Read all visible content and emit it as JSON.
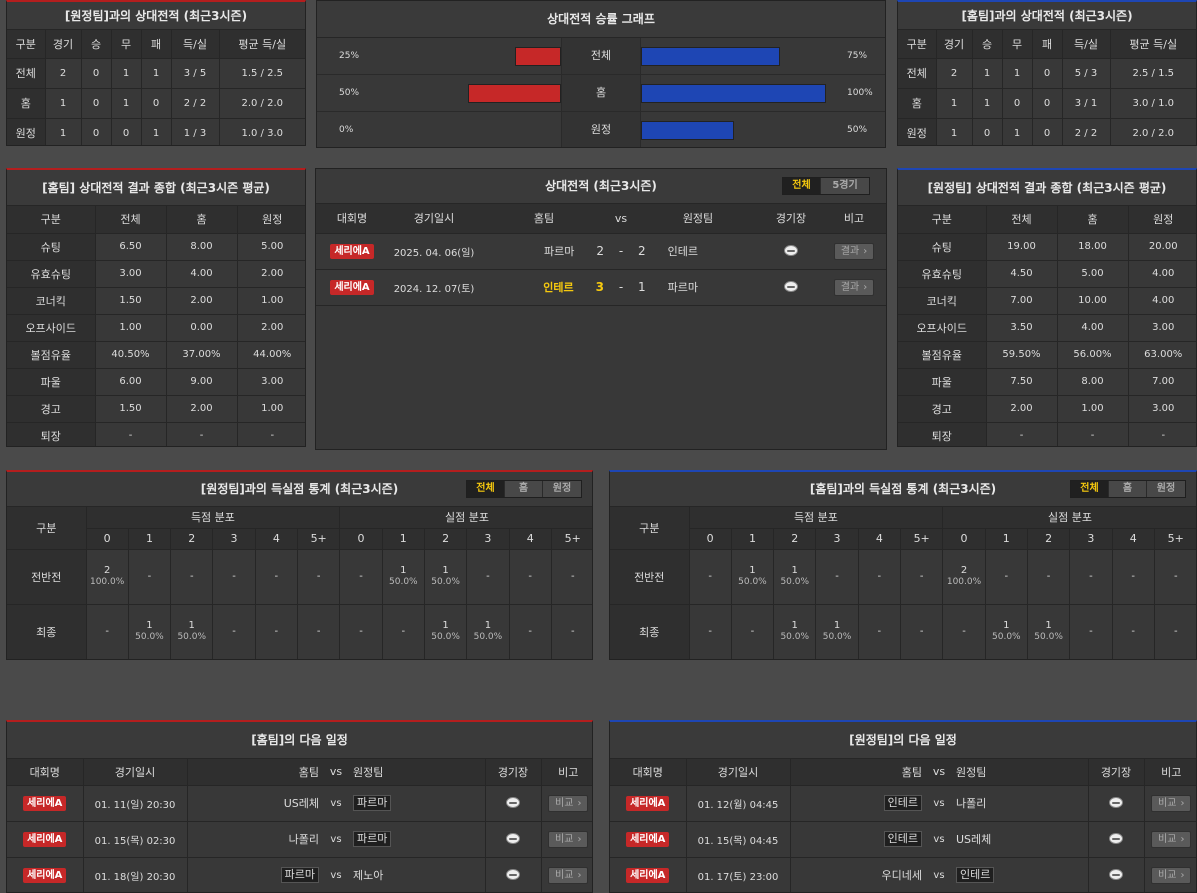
{
  "h2h_away": {
    "title": "[원정팀]과의 상대전적 (최근3시즌)",
    "headers": [
      "구분",
      "경기",
      "승",
      "무",
      "패",
      "득/실",
      "평균 득/실"
    ],
    "rows": [
      [
        "전체",
        "2",
        "0",
        "1",
        "1",
        "3 / 5",
        "1.5 / 2.5"
      ],
      [
        "홈",
        "1",
        "0",
        "1",
        "0",
        "2 / 2",
        "2.0 / 2.0"
      ],
      [
        "원정",
        "1",
        "0",
        "0",
        "1",
        "1 / 3",
        "1.0 / 3.0"
      ]
    ]
  },
  "graph": {
    "title": "상대전적 승률 그래프",
    "rows": [
      {
        "label": "전체",
        "left_pct": "25%",
        "right_pct": "75%",
        "left": 25,
        "right": 75
      },
      {
        "label": "홈",
        "left_pct": "50%",
        "right_pct": "100%",
        "left": 50,
        "right": 100
      },
      {
        "label": "원정",
        "left_pct": "0%",
        "right_pct": "50%",
        "left": 0,
        "right": 50
      }
    ],
    "left_color": "#c62828",
    "right_color": "#1e46b4"
  },
  "h2h_home": {
    "title": "[홈팀]과의 상대전적 (최근3시즌)",
    "headers": [
      "구분",
      "경기",
      "승",
      "무",
      "패",
      "득/실",
      "평균 득/실"
    ],
    "rows": [
      [
        "전체",
        "2",
        "1",
        "1",
        "0",
        "5 / 3",
        "2.5 / 1.5"
      ],
      [
        "홈",
        "1",
        "1",
        "0",
        "0",
        "3 / 1",
        "3.0 / 1.0"
      ],
      [
        "원정",
        "1",
        "0",
        "1",
        "0",
        "2 / 2",
        "2.0 / 2.0"
      ]
    ]
  },
  "summary_home": {
    "title": "[홈팀] 상대전적 결과 종합 (최근3시즌 평균)",
    "headers": [
      "구분",
      "전체",
      "홈",
      "원정"
    ],
    "rows": [
      [
        "슈팅",
        "6.50",
        "8.00",
        "5.00"
      ],
      [
        "유효슈팅",
        "3.00",
        "4.00",
        "2.00"
      ],
      [
        "코너킥",
        "1.50",
        "2.00",
        "1.00"
      ],
      [
        "오프사이드",
        "1.00",
        "0.00",
        "2.00"
      ],
      [
        "볼점유율",
        "40.50%",
        "37.00%",
        "44.00%"
      ],
      [
        "파울",
        "6.00",
        "9.00",
        "3.00"
      ],
      [
        "경고",
        "1.50",
        "2.00",
        "1.00"
      ],
      [
        "퇴장",
        "-",
        "-",
        "-"
      ]
    ]
  },
  "h2h_matches": {
    "title": "상대전적 (최근3시즌)",
    "tabs": [
      "전체",
      "5경기"
    ],
    "headers": {
      "league": "대회명",
      "date": "경기일시",
      "home": "홈팀",
      "vs": "vs",
      "away": "원정팀",
      "venue": "경기장",
      "note": "비고"
    },
    "rows": [
      {
        "league": "세리에A",
        "date": "2025. 04. 06(일)",
        "home": "파르마",
        "hs": "2",
        "dash": "-",
        "as": "2",
        "away": "인테르",
        "btn": "결과"
      },
      {
        "league": "세리에A",
        "date": "2024. 12. 07(토)",
        "home": "인테르",
        "hs": "3",
        "dash": "-",
        "as": "1",
        "away": "파르마",
        "btn": "결과"
      }
    ]
  },
  "summary_away": {
    "title": "[원정팀] 상대전적 결과 종합 (최근3시즌 평균)",
    "headers": [
      "구분",
      "전체",
      "홈",
      "원정"
    ],
    "rows": [
      [
        "슈팅",
        "19.00",
        "18.00",
        "20.00"
      ],
      [
        "유효슈팅",
        "4.50",
        "5.00",
        "4.00"
      ],
      [
        "코너킥",
        "7.00",
        "10.00",
        "4.00"
      ],
      [
        "오프사이드",
        "3.50",
        "4.00",
        "3.00"
      ],
      [
        "볼점유율",
        "59.50%",
        "56.00%",
        "63.00%"
      ],
      [
        "파울",
        "7.50",
        "8.00",
        "7.00"
      ],
      [
        "경고",
        "2.00",
        "1.00",
        "3.00"
      ],
      [
        "퇴장",
        "-",
        "-",
        "-"
      ]
    ]
  },
  "goals_left": {
    "title": "[원정팀]과의 득실점 통계 (최근3시즌)",
    "tabs": [
      "전체",
      "홈",
      "원정"
    ],
    "gubun": "구분",
    "scored": "득점 분포",
    "conceded": "실점 분포",
    "cols": [
      "0",
      "1",
      "2",
      "3",
      "4",
      "5+"
    ],
    "rows": [
      {
        "label": "전반전",
        "cells": [
          [
            "2",
            "100.0%"
          ],
          [
            "-",
            ""
          ],
          [
            "-",
            ""
          ],
          [
            "-",
            ""
          ],
          [
            "-",
            ""
          ],
          [
            "-",
            ""
          ],
          [
            "-",
            ""
          ],
          [
            "1",
            "50.0%"
          ],
          [
            "1",
            "50.0%"
          ],
          [
            "-",
            ""
          ],
          [
            "-",
            ""
          ],
          [
            "-",
            ""
          ]
        ]
      },
      {
        "label": "최종",
        "cells": [
          [
            "-",
            ""
          ],
          [
            "1",
            "50.0%"
          ],
          [
            "1",
            "50.0%"
          ],
          [
            "-",
            ""
          ],
          [
            "-",
            ""
          ],
          [
            "-",
            ""
          ],
          [
            "-",
            ""
          ],
          [
            "-",
            ""
          ],
          [
            "1",
            "50.0%"
          ],
          [
            "1",
            "50.0%"
          ],
          [
            "-",
            ""
          ],
          [
            "-",
            ""
          ]
        ]
      }
    ]
  },
  "goals_right": {
    "title": "[홈팀]과의 득실점 통계 (최근3시즌)",
    "tabs": [
      "전체",
      "홈",
      "원정"
    ],
    "gubun": "구분",
    "scored": "득점 분포",
    "conceded": "실점 분포",
    "cols": [
      "0",
      "1",
      "2",
      "3",
      "4",
      "5+"
    ],
    "rows": [
      {
        "label": "전반전",
        "cells": [
          [
            "-",
            ""
          ],
          [
            "1",
            "50.0%"
          ],
          [
            "1",
            "50.0%"
          ],
          [
            "-",
            ""
          ],
          [
            "-",
            ""
          ],
          [
            "-",
            ""
          ],
          [
            "2",
            "100.0%"
          ],
          [
            "-",
            ""
          ],
          [
            "-",
            ""
          ],
          [
            "-",
            ""
          ],
          [
            "-",
            ""
          ],
          [
            "-",
            ""
          ]
        ]
      },
      {
        "label": "최종",
        "cells": [
          [
            "-",
            ""
          ],
          [
            "-",
            ""
          ],
          [
            "1",
            "50.0%"
          ],
          [
            "1",
            "50.0%"
          ],
          [
            "-",
            ""
          ],
          [
            "-",
            ""
          ],
          [
            "-",
            ""
          ],
          [
            "1",
            "50.0%"
          ],
          [
            "1",
            "50.0%"
          ],
          [
            "-",
            ""
          ],
          [
            "-",
            ""
          ],
          [
            "-",
            ""
          ]
        ]
      }
    ]
  },
  "next_home": {
    "title": "[홈팀]의 다음 일정",
    "headers": {
      "league": "대회명",
      "date": "경기일시",
      "home": "홈팀",
      "vs": "vs",
      "away": "원정팀",
      "venue": "경기장",
      "note": "비고"
    },
    "rows": [
      {
        "league": "세리에A",
        "date": "01. 11(일) 20:30",
        "home": "US레체",
        "away": "파르마",
        "boxed": "away",
        "btn": "비교"
      },
      {
        "league": "세리에A",
        "date": "01. 15(목) 02:30",
        "home": "나폴리",
        "away": "파르마",
        "boxed": "away",
        "btn": "비교"
      },
      {
        "league": "세리에A",
        "date": "01. 18(일) 20:30",
        "home": "파르마",
        "away": "제노아",
        "boxed": "home",
        "btn": "비교"
      }
    ]
  },
  "next_away": {
    "title": "[원정팀]의 다음 일정",
    "headers": {
      "league": "대회명",
      "date": "경기일시",
      "home": "홈팀",
      "vs": "vs",
      "away": "원정팀",
      "venue": "경기장",
      "note": "비고"
    },
    "rows": [
      {
        "league": "세리에A",
        "date": "01. 12(월) 04:45",
        "home": "인테르",
        "away": "나폴리",
        "boxed": "home",
        "btn": "비교"
      },
      {
        "league": "세리에A",
        "date": "01. 15(목) 04:45",
        "home": "인테르",
        "away": "US레체",
        "boxed": "home",
        "btn": "비교"
      },
      {
        "league": "세리에A",
        "date": "01. 17(토) 23:00",
        "home": "우디네세",
        "away": "인테르",
        "boxed": "away",
        "btn": "비교"
      }
    ]
  }
}
